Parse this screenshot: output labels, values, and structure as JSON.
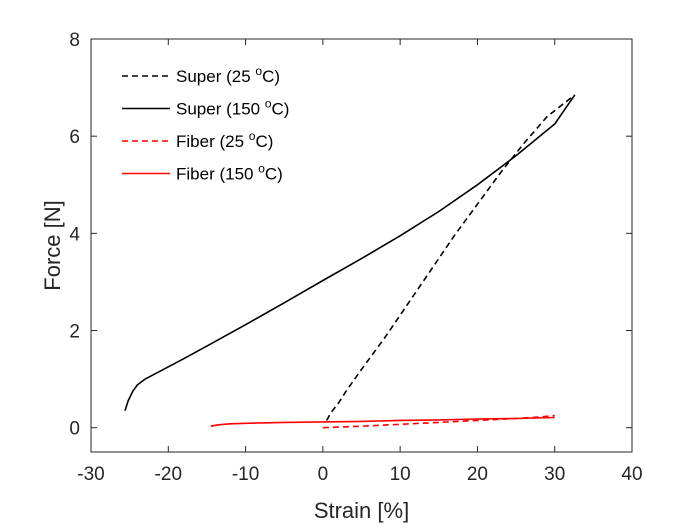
{
  "chart_data": {
    "type": "line",
    "xlabel": "Strain [%]",
    "ylabel": "Force [N]",
    "xlim": [
      -30,
      40
    ],
    "ylim": [
      -0.5,
      8
    ],
    "xticks": [
      -30,
      -20,
      -10,
      0,
      10,
      20,
      30,
      40
    ],
    "yticks": [
      0,
      2,
      4,
      6,
      8
    ],
    "grid": false,
    "legend_position": "top-left",
    "series": [
      {
        "name": "Super (25 °C)",
        "label_main": "Super (25 ",
        "label_sup": "o",
        "label_tail": "C)",
        "color": "#000000",
        "style": "dashed",
        "x": [
          0.5,
          1.0,
          2.0,
          3.0,
          5.0,
          8.0,
          11.0,
          14.0,
          17.0,
          20.0,
          23.0,
          26.0,
          29.0,
          31.0,
          32.6
        ],
        "y": [
          0.15,
          0.3,
          0.5,
          0.75,
          1.2,
          1.85,
          2.55,
          3.25,
          3.95,
          4.6,
          5.25,
          5.85,
          6.4,
          6.65,
          6.85
        ]
      },
      {
        "name": "Super (150 °C)",
        "label_main": "Super (150 ",
        "label_sup": "o",
        "label_tail": "C)",
        "color": "#000000",
        "style": "solid",
        "x": [
          -25.6,
          -25.2,
          -24.6,
          -24.0,
          -23.0,
          -21.0,
          -18.0,
          -15.0,
          -10.0,
          -5.0,
          0.0,
          5.0,
          10.0,
          15.0,
          20.0,
          25.0,
          30.0,
          32.6
        ],
        "y": [
          0.35,
          0.55,
          0.75,
          0.88,
          1.0,
          1.17,
          1.42,
          1.68,
          2.12,
          2.57,
          3.03,
          3.48,
          3.95,
          4.45,
          5.0,
          5.6,
          6.25,
          6.85
        ]
      },
      {
        "name": "Fiber (25 °C)",
        "label_main": "Fiber (25 ",
        "label_sup": "o",
        "label_tail": "C)",
        "color": "#ff0000",
        "style": "dashed",
        "x": [
          0.0,
          5.0,
          10.0,
          15.0,
          20.0,
          25.0,
          28.0,
          30.0
        ],
        "y": [
          0.0,
          0.03,
          0.07,
          0.11,
          0.15,
          0.19,
          0.22,
          0.25
        ]
      },
      {
        "name": "Fiber (150 °C)",
        "label_main": "Fiber (150 ",
        "label_sup": "o",
        "label_tail": "C)",
        "color": "#ff0000",
        "style": "solid",
        "x": [
          -14.5,
          -13.5,
          -12.0,
          -10.0,
          -5.0,
          0.0,
          5.0,
          10.0,
          15.0,
          20.0,
          25.0,
          30.0
        ],
        "y": [
          0.03,
          0.06,
          0.08,
          0.09,
          0.11,
          0.12,
          0.13,
          0.15,
          0.16,
          0.18,
          0.19,
          0.21
        ]
      }
    ]
  }
}
